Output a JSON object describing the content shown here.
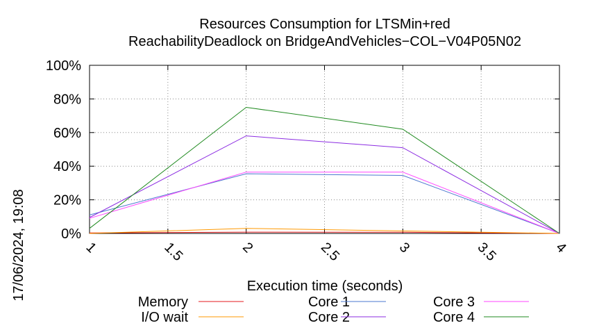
{
  "chart_data": {
    "type": "line",
    "title_line1": "Resources Consumption for LTSMin+red",
    "title_line2": "ReachabilityDeadlock on BridgeAndVehicles−COL−V04P05N02",
    "xlabel": "Execution time (seconds)",
    "ylabel": "",
    "side_label": "17/06/2024, 19:08",
    "xlim": [
      1,
      4
    ],
    "ylim": [
      0,
      100
    ],
    "x_ticks": [
      1,
      1.5,
      2,
      2.5,
      3,
      3.5,
      4
    ],
    "x_tick_labels": [
      "1",
      "1.5",
      "2",
      "2.5",
      "3",
      "3.5",
      "4"
    ],
    "y_ticks": [
      0,
      20,
      40,
      60,
      80,
      100
    ],
    "y_tick_labels": [
      "0%",
      "20%",
      "40%",
      "60%",
      "80%",
      "100%"
    ],
    "grid": true,
    "legend_position": "bottom",
    "x": [
      1,
      2,
      3,
      4
    ],
    "series": [
      {
        "name": "Memory",
        "color": "#e41a1c",
        "values": [
          0.3,
          0.8,
          0.7,
          0
        ]
      },
      {
        "name": "I/O wait",
        "color": "#ff9900",
        "values": [
          0,
          3,
          1.5,
          0
        ]
      },
      {
        "name": "Core 1",
        "color": "#4b77cf",
        "values": [
          11,
          35.5,
          34.5,
          0
        ]
      },
      {
        "name": "Core 2",
        "color": "#8b2be2",
        "values": [
          9.5,
          58,
          51,
          0
        ]
      },
      {
        "name": "Core 3",
        "color": "#ff44ff",
        "values": [
          9,
          36.5,
          36.5,
          0
        ]
      },
      {
        "name": "Core 4",
        "color": "#1f8a1f",
        "values": [
          3,
          75,
          62,
          0
        ]
      }
    ]
  }
}
